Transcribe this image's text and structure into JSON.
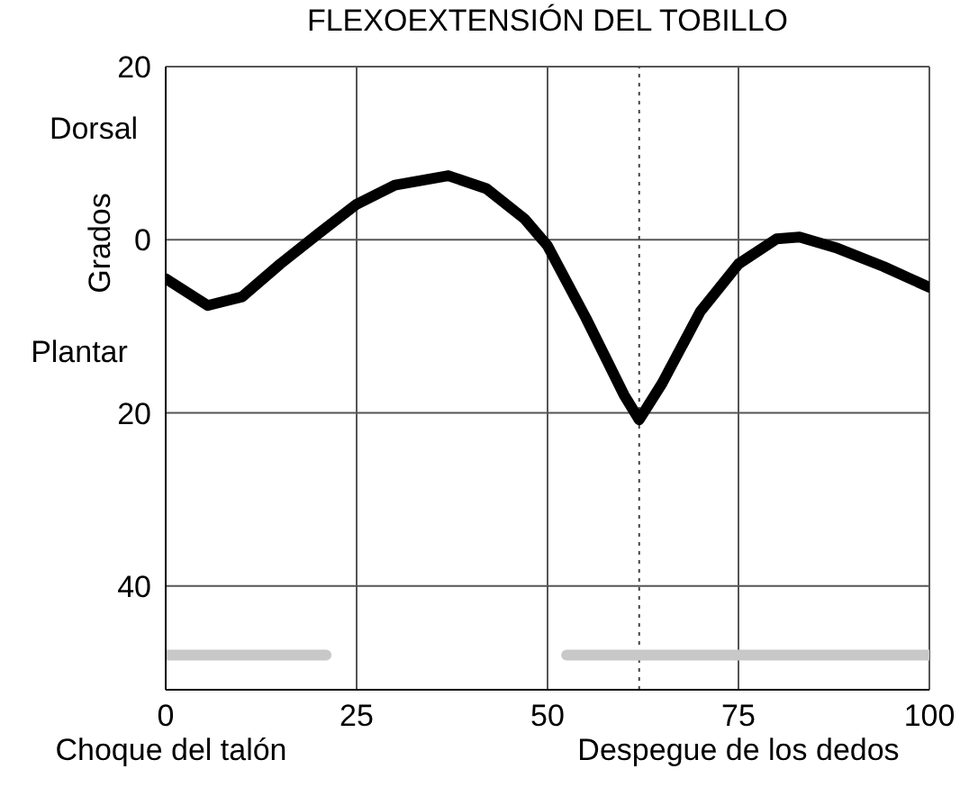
{
  "chart_data": {
    "type": "line",
    "title": "FLEXOEXTENSIÓN DEL TOBILLO",
    "ylabel": "Grados",
    "annotations": [
      "Dorsal",
      "Plantar",
      "Choque del talón",
      "Despegue de los dedos"
    ],
    "x": [
      0,
      5.5,
      10,
      15,
      20,
      25,
      30,
      37,
      42,
      47,
      50,
      55,
      60,
      62,
      65,
      70,
      75,
      80,
      83,
      88,
      94,
      100
    ],
    "series": [
      {
        "color": "#000000",
        "values": [
          -4.5,
          -7.6,
          -6.6,
          -2.8,
          0.7,
          4.1,
          6.3,
          7.4,
          5.9,
          2.4,
          -0.7,
          -9,
          -17.9,
          -20.8,
          -16.6,
          -8.3,
          -2.8,
          0.1,
          0.3,
          -1,
          -3.1,
          -5.5
        ]
      },
      {
        "type": "line",
        "color": "#c8c8c8",
        "x": [
          0,
          21
        ],
        "values": [
          -48,
          -48
        ]
      },
      {
        "type": "line",
        "color": "#c8c8c8",
        "x": [
          52.5,
          100
        ],
        "values": [
          -48,
          -48
        ]
      }
    ],
    "xlim": [
      0,
      100
    ],
    "xticks": [
      0,
      25,
      50,
      75,
      100
    ],
    "ylim": [
      -52,
      20
    ],
    "yticks": [
      20,
      0,
      {
        "value": -20,
        "label": "20"
      },
      {
        "value": -40,
        "label": "40"
      }
    ],
    "ref_lines": [
      {
        "axis": "x",
        "value": 62,
        "line_style": "dotted",
        "color": "#444444"
      }
    ],
    "grid": true,
    "marker": "none",
    "line_style": "solid",
    "legend": false
  }
}
